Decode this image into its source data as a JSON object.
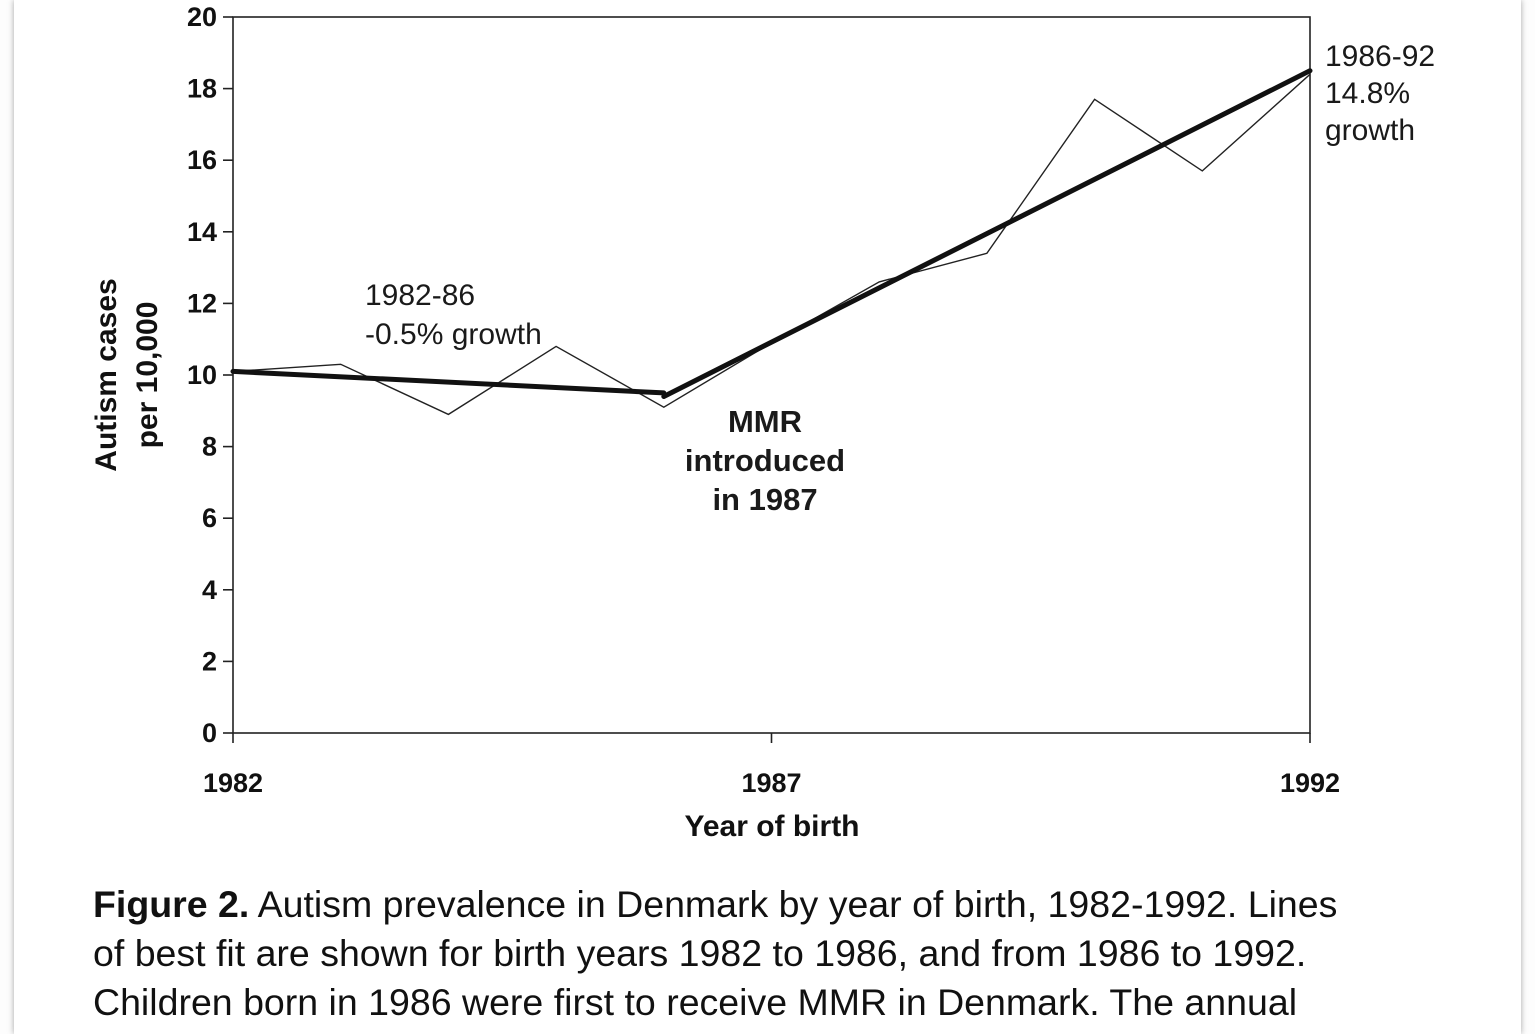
{
  "chart_data": {
    "type": "line",
    "xlabel": "Year of birth",
    "ylabel": [
      "Autism cases",
      "per 10,000"
    ],
    "xlim": [
      1982,
      1992
    ],
    "ylim": [
      0,
      20
    ],
    "x_ticks": [
      1982,
      1987,
      1992
    ],
    "y_ticks": [
      0,
      2,
      4,
      6,
      8,
      10,
      12,
      14,
      16,
      18,
      20
    ],
    "grid": false,
    "legend": "none",
    "series": [
      {
        "x": [
          1982,
          1983,
          1984,
          1985,
          1986,
          1987,
          1988,
          1989,
          1990,
          1991,
          1992
        ],
        "y": [
          10.1,
          10.3,
          8.9,
          10.8,
          9.1,
          10.9,
          12.6,
          13.4,
          17.7,
          15.7,
          18.4
        ]
      }
    ],
    "fit_lines": [
      {
        "x": [
          1982,
          1986
        ],
        "y": [
          10.1,
          9.5
        ]
      },
      {
        "x": [
          1986,
          1992
        ],
        "y": [
          9.4,
          18.5
        ]
      }
    ],
    "annotations": [
      {
        "id": "fit1",
        "lines": [
          "1982-86",
          "-0.5% growth"
        ]
      },
      {
        "id": "mmr",
        "lines": [
          "MMR",
          "introduced",
          "in 1987"
        ]
      },
      {
        "id": "fit2",
        "lines": [
          "1986-92",
          "14.8%",
          "growth"
        ]
      }
    ],
    "colors": {
      "data_line": "#222222",
      "fit_line": "#111111",
      "axis": "#222222"
    }
  },
  "caption": {
    "label": "Figure 2.",
    "line1": " Autism prevalence in Denmark by year of birth, 1982-1992. Lines",
    "line2": "of best fit are shown for birth years 1982 to 1986, and from 1986 to 1992.",
    "line3": "Children born in 1986 were first to receive MMR in Denmark. The annual"
  }
}
